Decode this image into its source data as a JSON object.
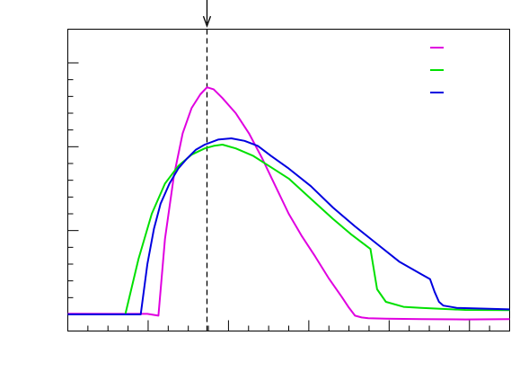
{
  "chart_data": {
    "type": "line",
    "title": "",
    "xlabel": "",
    "ylabel": "",
    "xlim": [
      0,
      100
    ],
    "ylim": [
      0,
      100
    ],
    "grid": false,
    "legend_position": "top-right",
    "marker": {
      "x": 31.5,
      "style": "dashed",
      "arrow": "down"
    },
    "series": [
      {
        "color": "#e000e0",
        "x": [
          0,
          18.0,
          20.5,
          22.0,
          24.0,
          26.0,
          28.0,
          30.0,
          31.5,
          33.0,
          35.0,
          38.0,
          41.0,
          44.0,
          47.0,
          50.0,
          53.0,
          56.0,
          59.0,
          62.0,
          63.5,
          65.0,
          66.5,
          68.0,
          72.0,
          80.0,
          90.0,
          100.0
        ],
        "y": [
          0.3,
          0.2,
          -0.5,
          30.0,
          55.0,
          72.0,
          82.0,
          87.5,
          90.3,
          89.5,
          86.0,
          80.0,
          72.0,
          62.0,
          51.0,
          40.0,
          31.0,
          23.0,
          14.5,
          7.0,
          3.0,
          -0.5,
          -1.2,
          -1.5,
          -1.7,
          -1.9,
          -2.0,
          -1.9
        ]
      },
      {
        "color": "#00e000",
        "x": [
          0,
          13.0,
          16.0,
          19.0,
          22.0,
          25.0,
          28.0,
          31.0,
          33.0,
          35.0,
          38.0,
          42.0,
          46.0,
          50.0,
          55.0,
          60.0,
          64.0,
          67.0,
          68.5,
          70.0,
          72.0,
          76.0,
          80.0,
          90.0,
          100.0
        ],
        "y": [
          0,
          0,
          22.0,
          40.0,
          52.0,
          59.0,
          63.5,
          66.0,
          67.0,
          67.5,
          66.0,
          63.0,
          58.5,
          54.0,
          46.0,
          38.0,
          32.0,
          28.0,
          26.0,
          10.0,
          5.0,
          3.0,
          2.6,
          1.8,
          1.7
        ]
      },
      {
        "color": "#0000e0",
        "x": [
          0,
          15.0,
          16.5,
          18.0,
          19.5,
          21.0,
          23.0,
          25.0,
          27.0,
          29.0,
          31.0,
          34.0,
          37.0,
          40.0,
          43.0,
          46.0,
          50.0,
          55.0,
          60.0,
          65.0,
          70.0,
          75.0,
          80.0,
          82.0,
          83.0,
          84.0,
          85.0,
          88.0,
          100.0
        ],
        "y": [
          0,
          0,
          0,
          20.0,
          34.0,
          44.0,
          52.0,
          58.0,
          62.0,
          65.5,
          67.5,
          69.5,
          70.0,
          69.0,
          67.0,
          63.0,
          58.0,
          51.0,
          42.5,
          35.0,
          28.0,
          21.0,
          16.0,
          14.0,
          9.0,
          5.0,
          3.5,
          2.6,
          2.0
        ]
      }
    ]
  }
}
